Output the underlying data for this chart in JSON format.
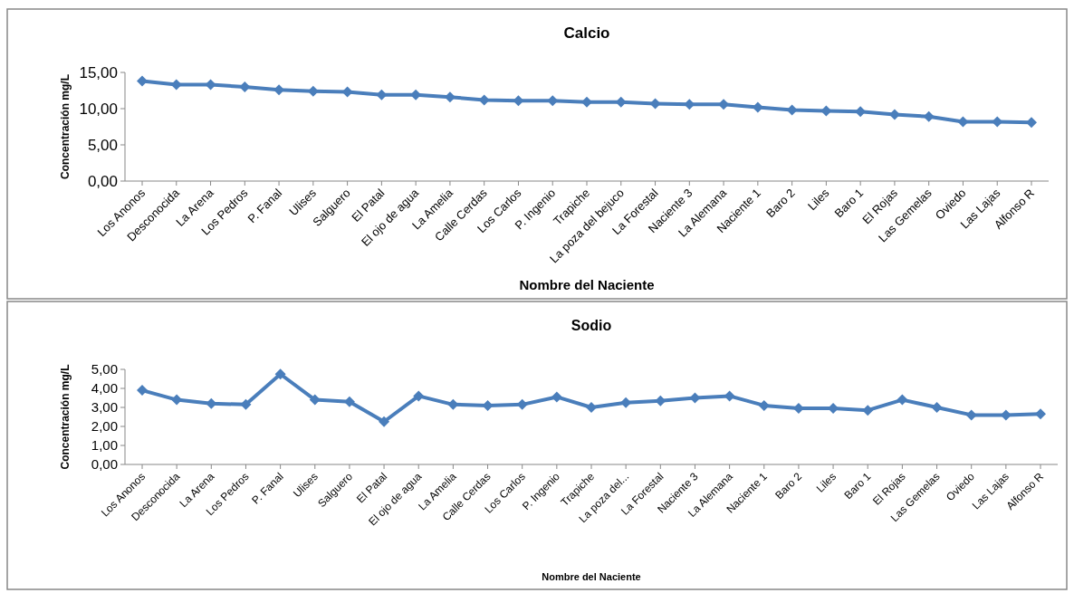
{
  "chart_data": [
    {
      "type": "line",
      "title": "Calcio",
      "xlabel": "Nombre del Naciente",
      "ylabel": "Concentración mg/L",
      "categories": [
        "Los Anonos",
        "Desconocida",
        "La Arena",
        "Los Pedros",
        "P. Fanal",
        "Ulises",
        "Salguero",
        "El Patal",
        "El ojo de agua",
        "La Amelia",
        "Calle Cerdas",
        "Los Carlos",
        "P. Ingenio",
        "Trapiche",
        "La poza del bejuco",
        "La Forestal",
        "Naciente 3",
        "La Alemana",
        "Naciente 1",
        "Baro 2",
        "Liles",
        "Baro 1",
        "El Rojas",
        "Las Gemelas",
        "Oviedo",
        "Las Lajas",
        "Alfonso R"
      ],
      "series": [
        {
          "color": "#4a7ebb",
          "values": [
            13.8,
            13.3,
            13.3,
            13.0,
            12.6,
            12.4,
            12.3,
            11.9,
            11.9,
            11.6,
            11.2,
            11.1,
            11.1,
            10.9,
            10.9,
            10.7,
            10.6,
            10.6,
            10.2,
            9.8,
            9.7,
            9.6,
            9.2,
            8.9,
            8.2,
            8.2,
            8.1
          ]
        }
      ],
      "ylim": [
        0,
        15
      ],
      "yticks": [
        {
          "value": 0,
          "label": "0,00"
        },
        {
          "value": 5,
          "label": "5,00"
        },
        {
          "value": 10,
          "label": "10,00"
        },
        {
          "value": 15,
          "label": "15,00"
        }
      ],
      "grid": false,
      "marker": "diamond",
      "line_style": "solid"
    },
    {
      "type": "line",
      "title": "Sodio",
      "xlabel": "Nombre del Naciente",
      "ylabel": "Concentración mg/L",
      "categories": [
        "Los Anonos",
        "Desconocida",
        "La Arena",
        "Los Pedros",
        "P. Fanal",
        "Ulises",
        "Salguero",
        "El Patal",
        "El ojo de agua",
        "La Amelia",
        "Calle Cerdas",
        "Los Carlos",
        "P. Ingenio",
        "Trapiche",
        "La poza del...",
        "La Forestal",
        "Naciente 3",
        "La Alemana",
        "Naciente 1",
        "Baro 2",
        "Liles",
        "Baro 1",
        "El Rojas",
        "Las Gemelas",
        "Oviedo",
        "Las Lajas",
        "Alfonso R"
      ],
      "series": [
        {
          "color": "#4a7ebb",
          "values": [
            3.9,
            3.4,
            3.2,
            3.15,
            4.75,
            3.4,
            3.3,
            2.25,
            3.6,
            3.15,
            3.1,
            3.15,
            3.55,
            3.0,
            3.25,
            3.35,
            3.5,
            3.6,
            3.1,
            2.95,
            2.95,
            2.85,
            3.4,
            3.0,
            2.6,
            2.6,
            2.65
          ]
        }
      ],
      "ylim": [
        0,
        5
      ],
      "yticks": [
        {
          "value": 0,
          "label": "0,00"
        },
        {
          "value": 1,
          "label": "1,00"
        },
        {
          "value": 2,
          "label": "2,00"
        },
        {
          "value": 3,
          "label": "3,00"
        },
        {
          "value": 4,
          "label": "4,00"
        },
        {
          "value": 5,
          "label": "5,00"
        }
      ],
      "grid": false,
      "marker": "diamond",
      "line_style": "solid"
    }
  ]
}
